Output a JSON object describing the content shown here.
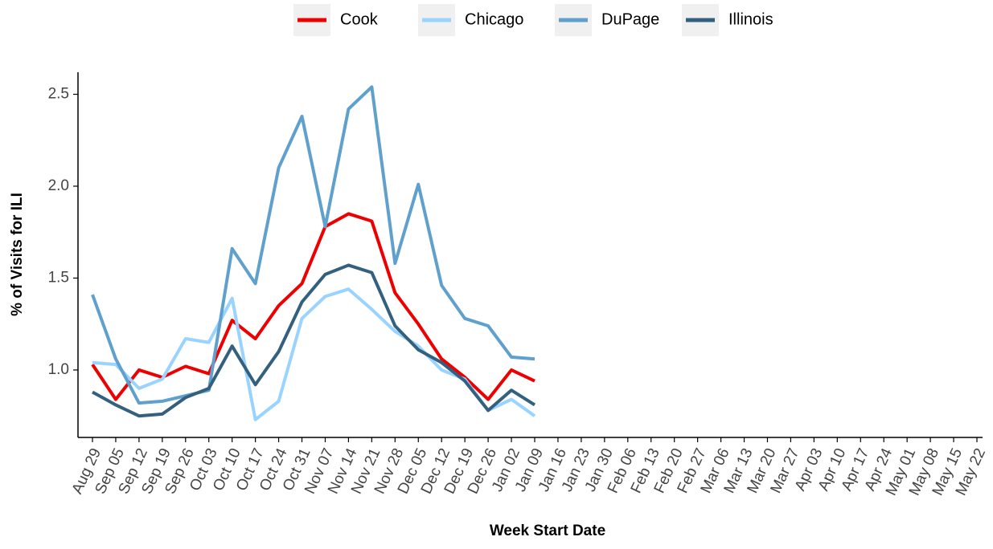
{
  "chart_data": {
    "type": "line",
    "x_label": "Week Start Date",
    "y_label": "% of Visits for ILI",
    "categories": [
      "Aug 29",
      "Sep 05",
      "Sep 12",
      "Sep 19",
      "Sep 26",
      "Oct 03",
      "Oct 10",
      "Oct 17",
      "Oct 24",
      "Oct 31",
      "Nov 07",
      "Nov 14",
      "Nov 21",
      "Nov 28",
      "Dec 05",
      "Dec 12",
      "Dec 19",
      "Dec 26",
      "Jan 02",
      "Jan 09",
      "Jan 16",
      "Jan 23",
      "Jan 30",
      "Feb 06",
      "Feb 13",
      "Feb 20",
      "Feb 27",
      "Mar 06",
      "Mar 13",
      "Mar 20",
      "Mar 27",
      "Apr 03",
      "Apr 10",
      "Apr 17",
      "Apr 24",
      "May 01",
      "May 08",
      "May 15",
      "May 22"
    ],
    "series": [
      {
        "name": "Cook",
        "color": "#ee0000",
        "values": [
          1.03,
          0.84,
          1.0,
          0.96,
          1.02,
          0.98,
          1.27,
          1.17,
          1.35,
          1.47,
          1.78,
          1.85,
          1.81,
          1.42,
          1.25,
          1.06,
          0.96,
          0.84,
          1.0,
          0.94,
          null,
          null,
          null,
          null,
          null,
          null,
          null,
          null,
          null,
          null,
          null,
          null,
          null,
          null,
          null,
          null,
          null,
          null,
          null
        ]
      },
      {
        "name": "Chicago",
        "color": "#99d3ff",
        "values": [
          1.04,
          1.03,
          0.9,
          0.95,
          1.17,
          1.15,
          1.39,
          0.73,
          0.83,
          1.28,
          1.4,
          1.44,
          1.33,
          1.21,
          1.13,
          1.0,
          0.95,
          0.78,
          0.84,
          0.75,
          null,
          null,
          null,
          null,
          null,
          null,
          null,
          null,
          null,
          null,
          null,
          null,
          null,
          null,
          null,
          null,
          null,
          null,
          null
        ]
      },
      {
        "name": "DuPage",
        "color": "#5fa0cc",
        "values": [
          1.41,
          1.06,
          0.82,
          0.83,
          0.86,
          0.89,
          1.66,
          1.47,
          2.1,
          2.38,
          1.78,
          2.42,
          2.54,
          1.58,
          2.01,
          1.46,
          1.28,
          1.24,
          1.07,
          1.06,
          null,
          null,
          null,
          null,
          null,
          null,
          null,
          null,
          null,
          null,
          null,
          null,
          null,
          null,
          null,
          null,
          null,
          null,
          null
        ]
      },
      {
        "name": "Illinois",
        "color": "#34607f",
        "values": [
          0.88,
          0.81,
          0.75,
          0.76,
          0.85,
          0.9,
          1.13,
          0.92,
          1.1,
          1.37,
          1.52,
          1.57,
          1.53,
          1.24,
          1.11,
          1.04,
          0.94,
          0.78,
          0.89,
          0.81,
          null,
          null,
          null,
          null,
          null,
          null,
          null,
          null,
          null,
          null,
          null,
          null,
          null,
          null,
          null,
          null,
          null,
          null,
          null
        ]
      }
    ],
    "ylim": [
      0.633,
      2.62
    ],
    "yticks": [
      {
        "value": 1.0,
        "label": "1.0"
      },
      1.5,
      {
        "value": 2.0,
        "label": "2.0"
      },
      2.5
    ],
    "legend": "top"
  }
}
